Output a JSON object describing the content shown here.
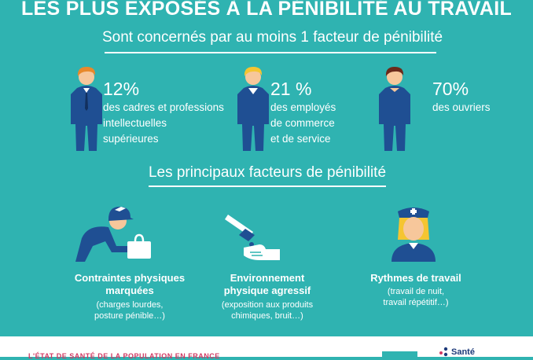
{
  "title": "LES PLUS EXPOSÉS À LA PÉNIBILITÉ AU TRAVAIL",
  "subtitle": "Sont concernés par au moins 1 facteur de pénibilité",
  "groups": [
    {
      "pct": "12%",
      "lines": [
        "des cadres et professions",
        "intellectuelles",
        "supérieures"
      ]
    },
    {
      "pct": "21 %",
      "lines": [
        "des employés",
        "de commerce",
        "et de service"
      ]
    },
    {
      "pct": "70%",
      "lines": [
        "des ouvriers"
      ]
    }
  ],
  "factors_heading": "Les principaux facteurs de pénibilité",
  "factors": [
    {
      "label_lines": [
        "Contraintes physiques",
        "marquées"
      ],
      "note_lines": [
        "(charges lourdes,",
        "posture pénible…)"
      ]
    },
    {
      "label_lines": [
        "Environnement",
        "physique agressif"
      ],
      "note_lines": [
        "(exposition aux produits",
        "chimiques, bruit…)"
      ]
    },
    {
      "label_lines": [
        "Rythmes de travail"
      ],
      "note_lines": [
        "(travail de nuit,",
        "travail répétitif…)"
      ]
    }
  ],
  "footer": {
    "text": "L'ÉTAT DE SANTÉ DE LA POPULATION EN FRANCE",
    "brand": "Santé"
  },
  "icons": {
    "people": [
      "executive-person-icon",
      "employee-person-icon",
      "worker-person-icon"
    ],
    "factors": [
      "worker-lifting-load-icon",
      "chemical-hazard-icon",
      "night-nurse-icon"
    ]
  },
  "colors": {
    "background": "#2fb3b1",
    "figure_body": "#1f4f93",
    "hair_orange": "#e8892b",
    "hair_yellow": "#f5c531",
    "hair_brown": "#6b2a1b",
    "footer_text": "#d13a63",
    "brand_blue": "#1d3a7a"
  }
}
